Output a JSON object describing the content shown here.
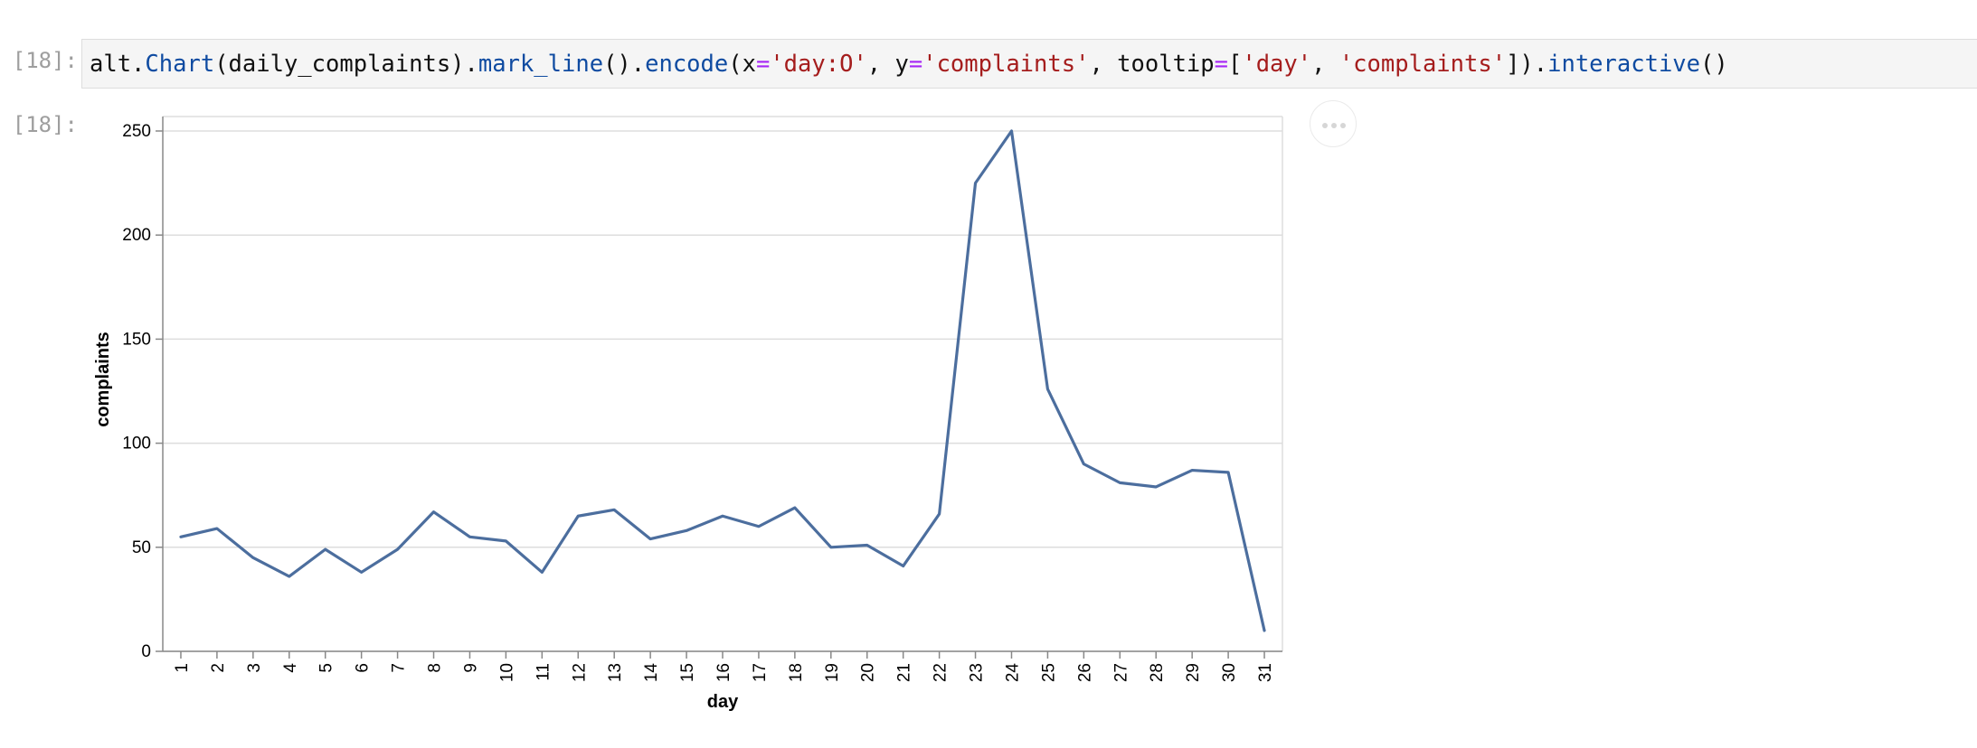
{
  "notebook": {
    "input_prompt": "[18]:",
    "output_prompt": "[18]:",
    "code_tokens": [
      {
        "t": "alt.",
        "c": ""
      },
      {
        "t": "Chart",
        "c": "fn"
      },
      {
        "t": "(daily_complaints).",
        "c": ""
      },
      {
        "t": "mark_line",
        "c": "fn"
      },
      {
        "t": "().",
        "c": ""
      },
      {
        "t": "encode",
        "c": "fn"
      },
      {
        "t": "(x",
        "c": ""
      },
      {
        "t": "=",
        "c": "op"
      },
      {
        "t": "'day:O'",
        "c": "str"
      },
      {
        "t": ", y",
        "c": ""
      },
      {
        "t": "=",
        "c": "op"
      },
      {
        "t": "'complaints'",
        "c": "str"
      },
      {
        "t": ", tooltip",
        "c": ""
      },
      {
        "t": "=",
        "c": "op"
      },
      {
        "t": "[",
        "c": ""
      },
      {
        "t": "'day'",
        "c": "str"
      },
      {
        "t": ", ",
        "c": ""
      },
      {
        "t": "'complaints'",
        "c": "str"
      },
      {
        "t": "]).",
        "c": ""
      },
      {
        "t": "interactive",
        "c": "fn"
      },
      {
        "t": "()",
        "c": ""
      }
    ],
    "actions_menu_icon": "ellipsis-icon"
  },
  "chart_data": {
    "type": "line",
    "title": "",
    "xlabel": "day",
    "ylabel": "complaints",
    "x": [
      "1",
      "2",
      "3",
      "4",
      "5",
      "6",
      "7",
      "8",
      "9",
      "10",
      "11",
      "12",
      "13",
      "14",
      "15",
      "16",
      "17",
      "18",
      "19",
      "20",
      "21",
      "22",
      "23",
      "24",
      "25",
      "26",
      "27",
      "28",
      "29",
      "30",
      "31"
    ],
    "series": [
      {
        "values": [
          55,
          59,
          45,
          36,
          49,
          38,
          49,
          67,
          55,
          53,
          38,
          65,
          68,
          54,
          58,
          65,
          60,
          69,
          50,
          51,
          41,
          66,
          225,
          250,
          126,
          90,
          81,
          79,
          87,
          86,
          10
        ]
      }
    ],
    "ylim": [
      0,
      250
    ],
    "y_ticks": [
      0,
      50,
      100,
      150,
      200,
      250
    ],
    "grid": true,
    "line_color": "#4c6e9e",
    "gridline_color": "#dddddd",
    "axis_color": "#888888"
  }
}
